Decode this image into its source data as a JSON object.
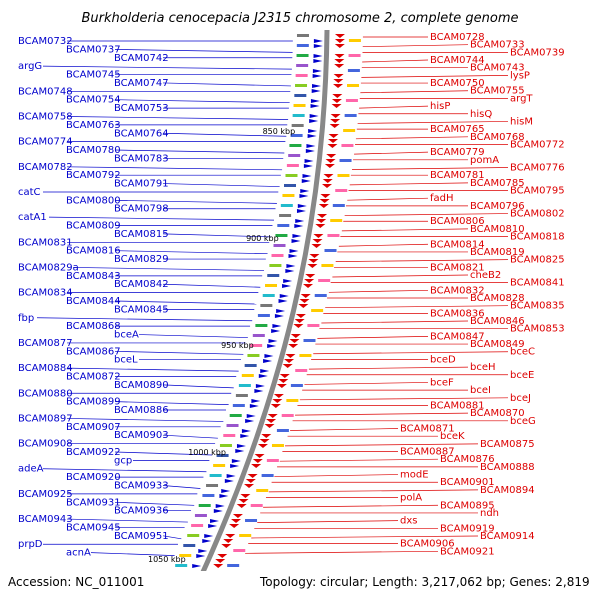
{
  "title": "Burkholderia cenocepacia J2315 chromosome 2, complete genome",
  "accession": "Accession: NC_011001",
  "summary": "Topology: circular; Length: 3,217,062 bp; Genes: 2,819",
  "colors": {
    "left_strand": "#0000cc",
    "right_strand": "#dd0000",
    "backbone": "#888888"
  },
  "position_marks": [
    "850 kbp",
    "900 kbp",
    "950 kbp",
    "1000 kbp",
    "1050 kbp"
  ],
  "left_genes": [
    "BCAM0732",
    "BCAM0737",
    "BCAM0742",
    "argG",
    "BCAM0745",
    "BCAM0747",
    "BCAM0748",
    "BCAM0754",
    "BCAM0753",
    "BCAM0758",
    "BCAM0763",
    "BCAM0764",
    "BCAM0774",
    "BCAM0780",
    "BCAM0783",
    "BCAM0782",
    "BCAM0792",
    "BCAM0791",
    "catC",
    "BCAM0800",
    "BCAM0798",
    "catA1",
    "BCAM0809",
    "BCAM0815",
    "BCAM0831",
    "BCAM0816",
    "BCAM0829",
    "BCAM0829a",
    "BCAM0843",
    "BCAM0842",
    "BCAM0834",
    "BCAM0844",
    "BCAM0845",
    "fbp",
    "BCAM0868",
    "bceA",
    "BCAM0877",
    "BCAM0867",
    "bceL",
    "BCAM0884",
    "BCAM0872",
    "BCAM0890",
    "BCAM0880",
    "BCAM0899",
    "BCAM0886",
    "BCAM0897",
    "BCAM0907",
    "BCAM0903",
    "BCAM0908",
    "BCAM0922",
    "gcp",
    "adeA",
    "BCAM0920",
    "BCAM0933",
    "BCAM0925",
    "BCAM0931",
    "BCAM0936",
    "BCAM0943",
    "BCAM0945",
    "BCAM0951",
    "prpD",
    "acnA"
  ],
  "right_genes": [
    "BCAM0728",
    "BCAM0733",
    "BCAM0739",
    "BCAM0744",
    "BCAM0743",
    "lysP",
    "BCAM0750",
    "BCAM0755",
    "argT",
    "hisP",
    "hisQ",
    "hisM",
    "BCAM0765",
    "BCAM0768",
    "BCAM0772",
    "BCAM0779",
    "pomA",
    "BCAM0776",
    "BCAM0781",
    "BCAM0785",
    "BCAM0795",
    "fadH",
    "BCAM0796",
    "BCAM0802",
    "BCAM0806",
    "BCAM0810",
    "BCAM0818",
    "BCAM0814",
    "BCAM0819",
    "BCAM0825",
    "BCAM0821",
    "cheB2",
    "BCAM0841",
    "BCAM0832",
    "BCAM0828",
    "BCAM0835",
    "BCAM0836",
    "BCAM0846",
    "BCAM0853",
    "BCAM0847",
    "BCAM0849",
    "bceC",
    "bceD",
    "bceH",
    "bceE",
    "bceF",
    "bceI",
    "bceJ",
    "BCAM0881",
    "BCAM0870",
    "bceG",
    "BCAM0871",
    "bceK",
    "BCAM0875",
    "BCAM0887",
    "BCAM0876",
    "BCAM0888",
    "modE",
    "BCAM0901",
    "BCAM0894",
    "polA",
    "BCAM0895",
    "ndh",
    "dxs",
    "BCAM0919",
    "BCAM0914",
    "BCAM0906",
    "BCAM0921"
  ]
}
